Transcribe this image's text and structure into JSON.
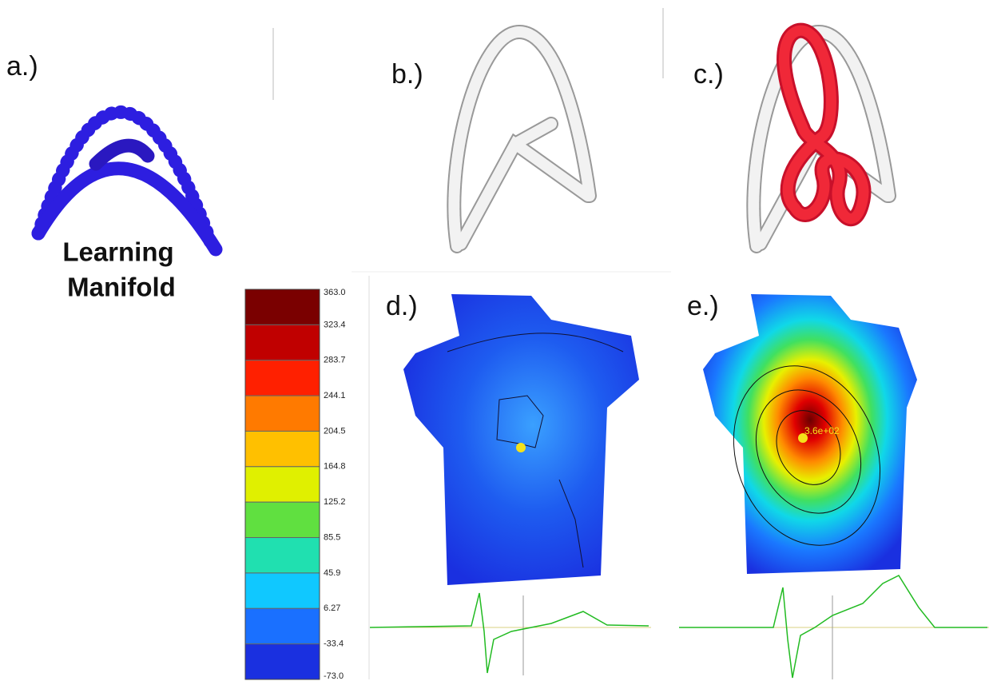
{
  "panels": {
    "a": "a.)",
    "b": "b.)",
    "c": "c.)",
    "d": "d.)",
    "e": "e.)"
  },
  "manifold_label": [
    "Learning",
    "Manifold"
  ],
  "colorbar": {
    "labels": [
      "363.0",
      "323.4",
      "283.7",
      "244.1",
      "204.5",
      "164.8",
      "125.2",
      "85.5",
      "45.9",
      "6.27",
      "-33.4",
      "-73.0"
    ]
  },
  "annotation": "3.6e+02"
}
